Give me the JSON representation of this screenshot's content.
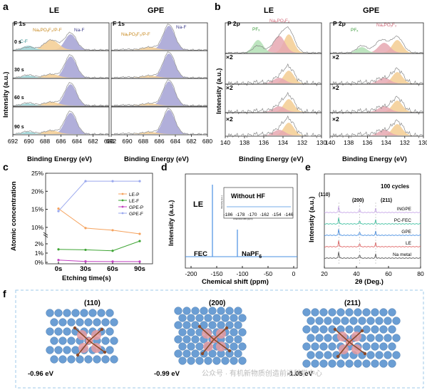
{
  "panel_letters": {
    "a": "a",
    "b": "b",
    "c": "c",
    "d": "d",
    "e": "e",
    "f": "f"
  },
  "panel_a": {
    "titles": [
      "LE",
      "GPE"
    ],
    "element_label": "F 1s",
    "peak_labels": {
      "cf": "C-F",
      "napof": "NaₓPOᵧF₂/P-F",
      "naf": "Na-F"
    },
    "time_labels": [
      "0 s",
      "30 s",
      "60 s",
      "90 s"
    ],
    "ylabel": "Intensity (a.u.)",
    "xlabel": "Binding Energy (eV)",
    "xticks": [
      "692",
      "690",
      "688",
      "686",
      "684",
      "682",
      "680"
    ],
    "colors": {
      "naf": "#a9a6d6",
      "napof": "#f4cf98",
      "cf": "#9ed6d8",
      "envelope": "#999999"
    }
  },
  "panel_b": {
    "titles": [
      "LE",
      "GPE"
    ],
    "element_label": "P 2p",
    "peak_labels": {
      "pf": "PFₓ",
      "napof": "NaₓPOᵧF₂"
    },
    "multipliers": [
      "×2",
      "×2",
      "×2"
    ],
    "ylabel": "Intensity (a.u.)",
    "xlabel": "Binding Energy (eV)",
    "xticks": [
      "140",
      "138",
      "136",
      "134",
      "132",
      "130"
    ],
    "colors": {
      "pf": "#b6e1b8",
      "napof": "#f4cf98",
      "pink": "#e6a8b2"
    }
  },
  "panel_c": {
    "ylabel": "Atomic concentration",
    "xlabel": "Etching time(s)",
    "yticks_upper": [
      "25%",
      "20%",
      "15%",
      "10%"
    ],
    "yticks_lower": [
      "2%",
      "1%",
      "0%"
    ],
    "chart_data": {
      "type": "line",
      "categories": [
        "0s",
        "30s",
        "60s",
        "90s"
      ],
      "series": [
        {
          "name": "LE-P",
          "color": "#f5a25d",
          "values": [
            15.2,
            9.8,
            9.2,
            8.2
          ]
        },
        {
          "name": "LE-F",
          "color": "#3fa535",
          "values": [
            1.4,
            1.35,
            1.25,
            2.3
          ]
        },
        {
          "name": "GPE-P",
          "color": "#c040c0",
          "values": [
            0.25,
            0.1,
            0.08,
            0.08
          ]
        },
        {
          "name": "GPE-F",
          "color": "#9aa8ee",
          "values": [
            14.5,
            22.8,
            22.8,
            22.8
          ]
        }
      ]
    }
  },
  "panel_d": {
    "ylabel": "Intensity (a.u.)",
    "xlabel": "Chemical shift (ppm)",
    "xticks": [
      "-200",
      "-150",
      "-100",
      "-50",
      "0"
    ],
    "labels": {
      "le": "LE",
      "fec": "FEC",
      "napf": "NaPF",
      "napf_sub": "6",
      "inset_title": "Without HF"
    },
    "inset_xticks": [
      "-186",
      "-178",
      "-170",
      "-162",
      "-154",
      "-146"
    ],
    "inset_xlabel": "Chemical shift (ppm)",
    "inset_ylabel": "Intensity (a.u.)"
  },
  "panel_e": {
    "ylabel": "Intensity (a.u.)",
    "xlabel": "2θ (Deg.)",
    "xticks": [
      "20",
      "40",
      "60",
      "80"
    ],
    "title": "100 cycles",
    "peaks": [
      "(110)",
      "(200)",
      "(211)"
    ],
    "traces": [
      {
        "name": "INGPE",
        "color": "#c8a8e8"
      },
      {
        "name": "PC-FEC",
        "color": "#40c0a0"
      },
      {
        "name": "GPE",
        "color": "#4a90e2"
      },
      {
        "name": "LE",
        "color": "#e06666"
      },
      {
        "name": "Na metal",
        "color": "#555555"
      }
    ]
  },
  "panel_f": {
    "facets": [
      "(110)",
      "(200)",
      "(211)"
    ],
    "energies": [
      "-0.96 eV",
      "-0.99 eV",
      "-1.05 eV"
    ],
    "watermark": "公众号 · 有机新物质创造前沿科学中心",
    "colors": {
      "na": "#6b9ed4",
      "p": "#e59aa0",
      "c": "#8a4a2a"
    }
  }
}
